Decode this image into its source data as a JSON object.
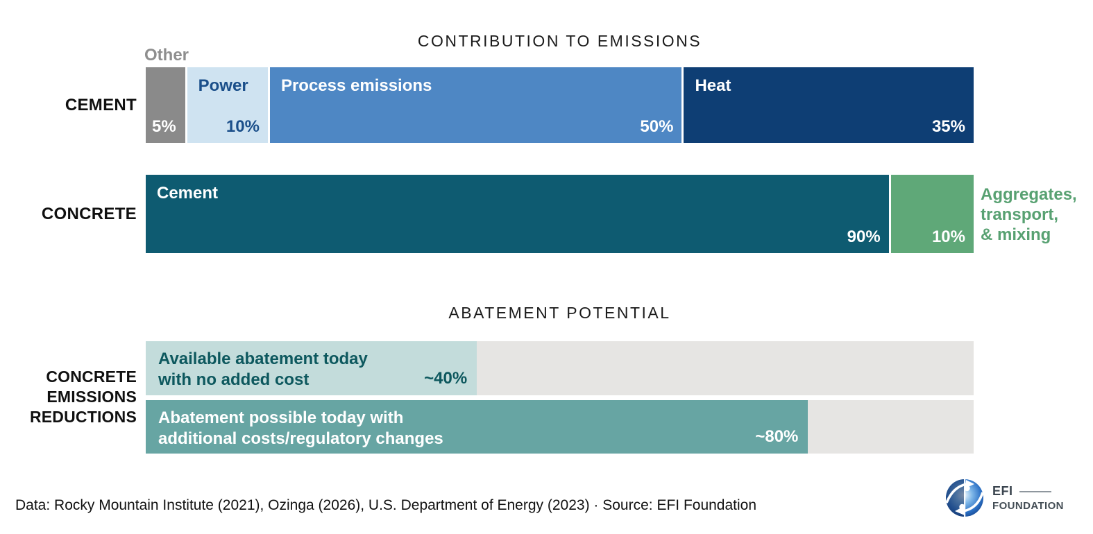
{
  "chart_data": [
    {
      "type": "bar",
      "variant": "stacked-horizontal",
      "title": "CONTRIBUTION TO EMISSIONS",
      "unit": "%",
      "xlim": [
        0,
        100
      ],
      "rows": [
        {
          "category": "CEMENT",
          "segments": [
            {
              "label": "Other",
              "value": 5,
              "value_label": "5%",
              "color": "#8a8a8a"
            },
            {
              "label": "Power",
              "value": 10,
              "value_label": "10%",
              "color": "#cfe3f1"
            },
            {
              "label": "Process emissions",
              "value": 50,
              "value_label": "50%",
              "color": "#4e87c4"
            },
            {
              "label": "Heat",
              "value": 35,
              "value_label": "35%",
              "color": "#0e3e74"
            }
          ]
        },
        {
          "category": "CONCRETE",
          "segments": [
            {
              "label": "Cement",
              "value": 90,
              "value_label": "90%",
              "color": "#0e5b71"
            },
            {
              "label": "Aggregates,\ntransport,\n& mixing",
              "value": 10,
              "value_label": "10%",
              "color": "#5fa878"
            }
          ]
        }
      ]
    },
    {
      "type": "bar",
      "variant": "progress-horizontal",
      "title": "ABATEMENT POTENTIAL",
      "category": "CONCRETE\nEMISSIONS\nREDUCTIONS",
      "unit": "%",
      "xlim": [
        0,
        100
      ],
      "bars": [
        {
          "label": "Available abatement today\nwith no added cost",
          "value": 40,
          "value_label": "~40%",
          "color": "#c3dcdb",
          "track_color": "#e6e5e3"
        },
        {
          "label": "Abatement possible today with\nadditional costs/regulatory changes",
          "value": 80,
          "value_label": "~80%",
          "color": "#67a5a3",
          "track_color": "#e6e5e3"
        }
      ]
    }
  ],
  "footer": {
    "attribution": "Data: Rocky Mountain Institute (2021), Ozinga (2026), U.S. Department of Energy (2023) · Source: EFI Foundation",
    "logo": {
      "org": "EFI",
      "org_sub": "FOUNDATION"
    }
  }
}
